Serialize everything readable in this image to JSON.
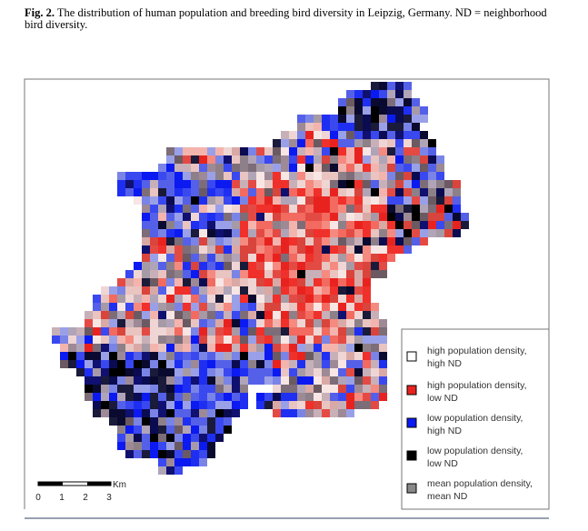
{
  "caption": {
    "label": "Fig. 2.",
    "text": "The distribution of human population and breeding bird diversity in Leipzig, Germany. ND = neighborhood bird diversity."
  },
  "legend": [
    {
      "lines": [
        "high population density,",
        "high ND"
      ]
    },
    {
      "lines": [
        "high population density,",
        "low ND"
      ]
    },
    {
      "lines": [
        "low population density,",
        "high ND"
      ]
    },
    {
      "lines": [
        "low population density,",
        "low ND"
      ]
    },
    {
      "lines": [
        "mean population density,",
        "mean ND"
      ]
    }
  ],
  "scale_bar": {
    "unit": "Km",
    "ticks": [
      "0",
      "1",
      "2",
      "3"
    ]
  }
}
